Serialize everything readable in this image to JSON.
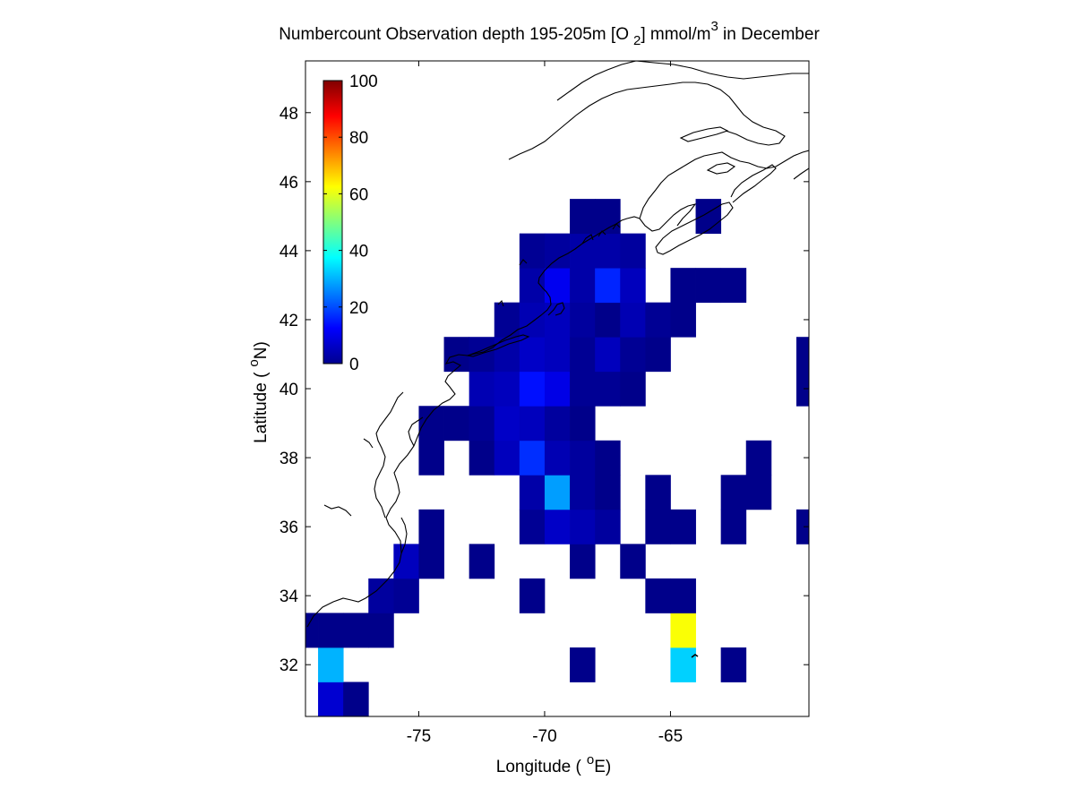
{
  "title": {
    "prefix": "Numbercount Observation depth 195-205m [O",
    "sub": "2",
    "mid": "] mmol/m",
    "sup": "3",
    "suffix": " in December"
  },
  "xaxis": {
    "label_prefix": "Longitude (",
    "label_deg": "o",
    "label_suffix": "E)",
    "ticks": [
      {
        "value": -75,
        "label": "-75"
      },
      {
        "value": -70,
        "label": "-70"
      },
      {
        "value": -65,
        "label": "-65"
      }
    ],
    "range": [
      -79.5,
      -59.5
    ]
  },
  "yaxis": {
    "label_prefix": "Latitude (",
    "label_deg": "o",
    "label_suffix": "N)",
    "ticks": [
      {
        "value": 32,
        "label": "32"
      },
      {
        "value": 34,
        "label": "34"
      },
      {
        "value": 36,
        "label": "36"
      },
      {
        "value": 38,
        "label": "38"
      },
      {
        "value": 40,
        "label": "40"
      },
      {
        "value": 42,
        "label": "42"
      },
      {
        "value": 44,
        "label": "44"
      },
      {
        "value": 46,
        "label": "46"
      },
      {
        "value": 48,
        "label": "48"
      }
    ],
    "range": [
      30.5,
      49.5
    ]
  },
  "colorbar": {
    "colormap": "jet",
    "range": [
      0,
      100
    ],
    "placement": "top-left inside axes",
    "ticks": [
      {
        "value": 0,
        "label": "0"
      },
      {
        "value": 20,
        "label": "20"
      },
      {
        "value": 40,
        "label": "40"
      },
      {
        "value": 60,
        "label": "60"
      },
      {
        "value": 80,
        "label": "80"
      },
      {
        "value": 100,
        "label": "100"
      }
    ]
  },
  "chart_data": {
    "type": "heatmap",
    "cell_size_deg": 1,
    "grid": false,
    "description_units": "cells: [lon_center, lat_center, count]",
    "cells": [
      [
        -78.5,
        31.0,
        8
      ],
      [
        -77.5,
        31.0,
        1
      ],
      [
        -78.5,
        32.0,
        30
      ],
      [
        -68.5,
        32.0,
        1
      ],
      [
        -64.5,
        32.0,
        33
      ],
      [
        -62.5,
        32.0,
        1
      ],
      [
        -79.5,
        33.0,
        1
      ],
      [
        -78.5,
        33.0,
        1
      ],
      [
        -77.5,
        33.0,
        1
      ],
      [
        -76.5,
        33.0,
        1
      ],
      [
        -64.5,
        33.0,
        62
      ],
      [
        -76.5,
        34.0,
        3
      ],
      [
        -75.5,
        34.0,
        2
      ],
      [
        -70.5,
        34.0,
        1
      ],
      [
        -65.5,
        34.0,
        1
      ],
      [
        -64.5,
        34.0,
        1
      ],
      [
        -75.5,
        35.0,
        6
      ],
      [
        -74.5,
        35.0,
        1
      ],
      [
        -72.5,
        35.0,
        1
      ],
      [
        -68.5,
        35.0,
        1
      ],
      [
        -66.5,
        35.0,
        1
      ],
      [
        -74.5,
        36.0,
        1
      ],
      [
        -70.5,
        36.0,
        2
      ],
      [
        -69.5,
        36.0,
        7
      ],
      [
        -68.5,
        36.0,
        5
      ],
      [
        -67.5,
        36.0,
        3
      ],
      [
        -65.5,
        36.0,
        1
      ],
      [
        -64.5,
        36.0,
        1
      ],
      [
        -62.5,
        36.0,
        1
      ],
      [
        -59.5,
        36.0,
        1
      ],
      [
        -70.5,
        37.0,
        4
      ],
      [
        -69.5,
        37.0,
        28
      ],
      [
        -68.5,
        37.0,
        3
      ],
      [
        -67.5,
        37.0,
        1
      ],
      [
        -65.5,
        37.0,
        1
      ],
      [
        -62.5,
        37.0,
        1
      ],
      [
        -61.5,
        37.0,
        1
      ],
      [
        -74.5,
        38.0,
        1
      ],
      [
        -72.5,
        38.0,
        1
      ],
      [
        -71.5,
        38.0,
        6
      ],
      [
        -70.5,
        38.0,
        17
      ],
      [
        -69.5,
        38.0,
        5
      ],
      [
        -68.5,
        38.0,
        3
      ],
      [
        -67.5,
        38.0,
        1
      ],
      [
        -61.5,
        38.0,
        1
      ],
      [
        -74.5,
        39.0,
        1
      ],
      [
        -73.5,
        39.0,
        1
      ],
      [
        -72.5,
        39.0,
        2
      ],
      [
        -71.5,
        39.0,
        7
      ],
      [
        -70.5,
        39.0,
        6
      ],
      [
        -69.5,
        39.0,
        3
      ],
      [
        -68.5,
        39.0,
        1
      ],
      [
        -72.5,
        40.0,
        5
      ],
      [
        -71.5,
        40.0,
        6
      ],
      [
        -70.5,
        40.0,
        14
      ],
      [
        -69.5,
        40.0,
        10
      ],
      [
        -68.5,
        40.0,
        2
      ],
      [
        -67.5,
        40.0,
        2
      ],
      [
        -66.5,
        40.0,
        1
      ],
      [
        -59.5,
        40.0,
        1
      ],
      [
        -73.5,
        41.0,
        1
      ],
      [
        -72.5,
        41.0,
        2
      ],
      [
        -71.5,
        41.0,
        4
      ],
      [
        -70.5,
        41.0,
        7
      ],
      [
        -69.5,
        41.0,
        6
      ],
      [
        -68.5,
        41.0,
        2
      ],
      [
        -67.5,
        41.0,
        6
      ],
      [
        -66.5,
        41.0,
        2
      ],
      [
        -65.5,
        41.0,
        1
      ],
      [
        -59.5,
        41.0,
        1
      ],
      [
        -71.5,
        42.0,
        2
      ],
      [
        -70.5,
        42.0,
        5
      ],
      [
        -69.5,
        42.0,
        6
      ],
      [
        -68.5,
        42.0,
        3
      ],
      [
        -67.5,
        42.0,
        1
      ],
      [
        -66.5,
        42.0,
        5
      ],
      [
        -65.5,
        42.0,
        2
      ],
      [
        -64.5,
        42.0,
        1
      ],
      [
        -70.5,
        43.0,
        4
      ],
      [
        -69.5,
        43.0,
        11
      ],
      [
        -68.5,
        43.0,
        4
      ],
      [
        -67.5,
        43.0,
        16
      ],
      [
        -66.5,
        43.0,
        6
      ],
      [
        -64.5,
        43.0,
        1
      ],
      [
        -63.5,
        43.0,
        1
      ],
      [
        -62.5,
        43.0,
        1
      ],
      [
        -70.5,
        44.0,
        2
      ],
      [
        -69.5,
        44.0,
        3
      ],
      [
        -68.5,
        44.0,
        4
      ],
      [
        -67.5,
        44.0,
        4
      ],
      [
        -66.5,
        44.0,
        3
      ],
      [
        -68.5,
        45.0,
        1
      ],
      [
        -67.5,
        45.0,
        1
      ],
      [
        -63.5,
        45.0,
        1
      ]
    ]
  },
  "colors": {
    "background": "#ffffff",
    "axes_edge": "#000000",
    "coastline": "#000000"
  }
}
